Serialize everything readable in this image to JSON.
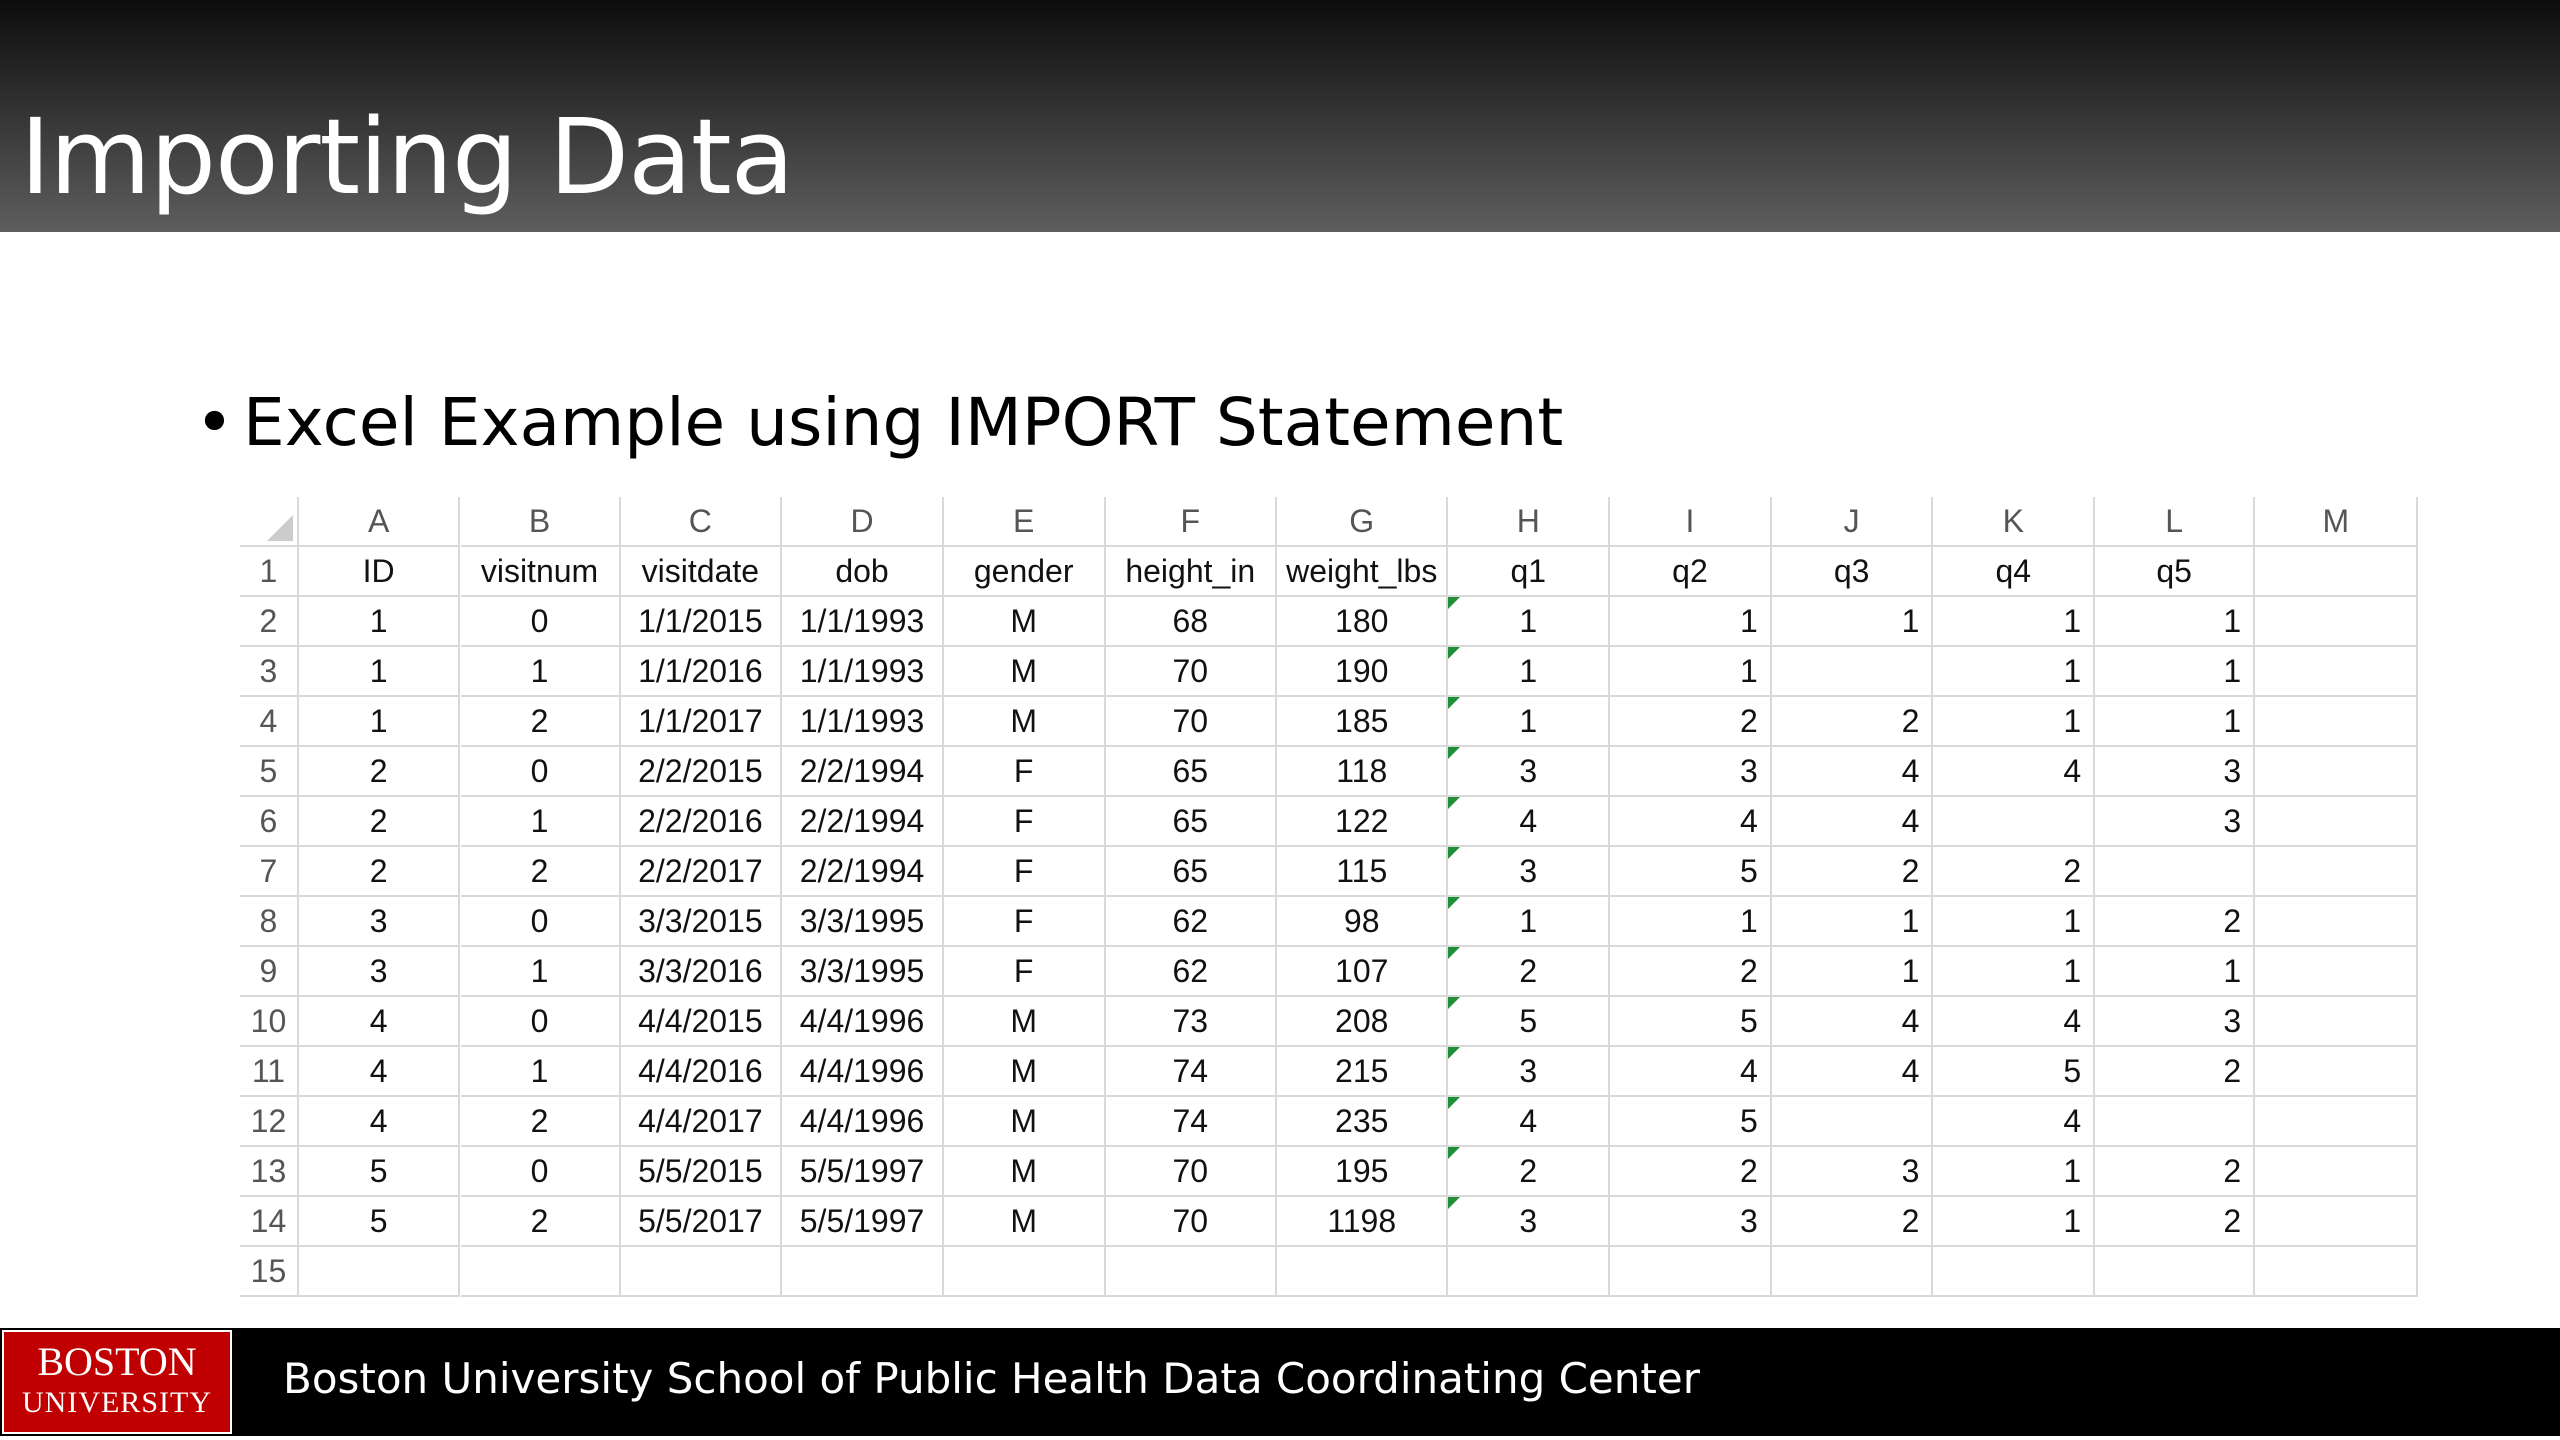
{
  "header": {
    "title": "Importing Data"
  },
  "body": {
    "bullet": "Excel Example using IMPORT Statement"
  },
  "spreadsheet": {
    "column_letters": [
      "A",
      "B",
      "C",
      "D",
      "E",
      "F",
      "G",
      "H",
      "I",
      "J",
      "K",
      "L",
      "M"
    ],
    "row_numbers": [
      1,
      2,
      3,
      4,
      5,
      6,
      7,
      8,
      9,
      10,
      11,
      12,
      13,
      14,
      15
    ],
    "rows": [
      [
        "ID",
        "visitnum",
        "visitdate",
        "dob",
        "gender",
        "height_in",
        "weight_lbs",
        "q1",
        "q2",
        "q3",
        "q4",
        "q5"
      ],
      [
        1,
        0,
        "1/1/2015",
        "1/1/1993",
        "M",
        68,
        180,
        1,
        1,
        1,
        1,
        1
      ],
      [
        1,
        1,
        "1/1/2016",
        "1/1/1993",
        "M",
        70,
        190,
        1,
        1,
        null,
        1,
        1
      ],
      [
        1,
        2,
        "1/1/2017",
        "1/1/1993",
        "M",
        70,
        185,
        1,
        2,
        2,
        1,
        1
      ],
      [
        2,
        0,
        "2/2/2015",
        "2/2/1994",
        "F",
        65,
        118,
        3,
        3,
        4,
        4,
        3
      ],
      [
        2,
        1,
        "2/2/2016",
        "2/2/1994",
        "F",
        65,
        122,
        4,
        4,
        4,
        null,
        3
      ],
      [
        2,
        2,
        "2/2/2017",
        "2/2/1994",
        "F",
        65,
        115,
        3,
        5,
        2,
        2,
        null
      ],
      [
        3,
        0,
        "3/3/2015",
        "3/3/1995",
        "F",
        62,
        98,
        1,
        1,
        1,
        1,
        2
      ],
      [
        3,
        1,
        "3/3/2016",
        "3/3/1995",
        "F",
        62,
        107,
        2,
        2,
        1,
        1,
        1
      ],
      [
        4,
        0,
        "4/4/2015",
        "4/4/1996",
        "M",
        73,
        208,
        5,
        5,
        4,
        4,
        3
      ],
      [
        4,
        1,
        "4/4/2016",
        "4/4/1996",
        "M",
        74,
        215,
        3,
        4,
        4,
        5,
        2
      ],
      [
        4,
        2,
        "4/4/2017",
        "4/4/1996",
        "M",
        74,
        235,
        4,
        5,
        null,
        4,
        null
      ],
      [
        5,
        0,
        "5/5/2015",
        "5/5/1997",
        "M",
        70,
        195,
        2,
        2,
        3,
        1,
        2
      ],
      [
        5,
        2,
        "5/5/2017",
        "5/5/1997",
        "M",
        70,
        1198,
        3,
        3,
        2,
        1,
        2
      ]
    ]
  },
  "footer": {
    "logo_line1": "BOSTON",
    "logo_line2": "UNIVERSITY",
    "text": "Boston University School of Public Health Data Coordinating Center"
  }
}
